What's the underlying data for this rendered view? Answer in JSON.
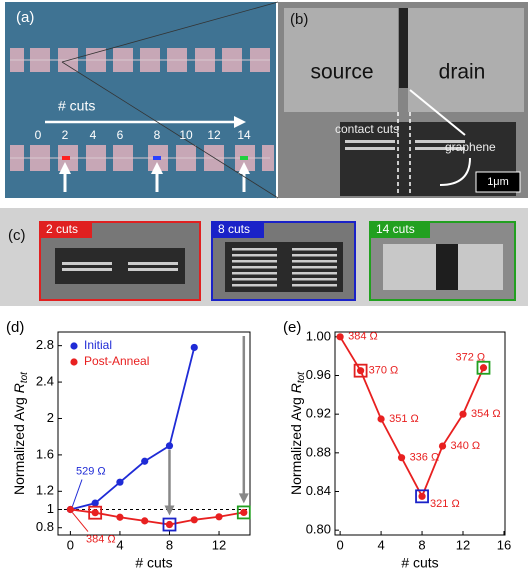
{
  "panels": {
    "a": {
      "label": "(a)",
      "axis_title": "# cuts",
      "numbers": [
        "0",
        "2",
        "4",
        "6",
        "8",
        "10",
        "12",
        "14"
      ]
    },
    "b": {
      "label": "(b)",
      "source": "source",
      "drain": "drain",
      "contact_cuts": "contact cuts",
      "graphene": "graphene",
      "scale": "1μm"
    },
    "c": {
      "label": "(c)",
      "tags": [
        "2 cuts",
        "8 cuts",
        "14 cuts"
      ]
    }
  },
  "chart_data": [
    {
      "type": "line",
      "panel_label": "(d)",
      "xlabel": "# cuts",
      "ylabel": "Normalized Avg",
      "ylabel_symbol": "R",
      "ylabel_subscript": "tot",
      "xlim": [
        -1,
        14.5
      ],
      "ylim": [
        0.72,
        2.95
      ],
      "xticks": [
        0,
        4,
        8,
        12
      ],
      "yticks": [
        0.8,
        1.0,
        1.2,
        1.6,
        2.0,
        2.4,
        2.8
      ],
      "reference_line": 1.0,
      "legend": true,
      "series": [
        {
          "name": "Initial",
          "color": "#1f2bd6",
          "x": [
            0,
            2,
            4,
            6,
            8,
            10
          ],
          "values": [
            1.0,
            1.07,
            1.3,
            1.53,
            1.7,
            2.78
          ]
        },
        {
          "name": "Post-Anneal",
          "color": "#e82020",
          "x": [
            0,
            2,
            4,
            6,
            8,
            10,
            12,
            14
          ],
          "values": [
            1.0,
            0.965,
            0.915,
            0.875,
            0.835,
            0.887,
            0.92,
            0.968
          ]
        }
      ],
      "highlights": [
        {
          "x": 2,
          "color": "#e02020"
        },
        {
          "x": 8,
          "color": "#1a22c8"
        },
        {
          "x": 14,
          "color": "#22a020"
        }
      ],
      "annotations": [
        "529 Ω",
        "384 Ω"
      ]
    },
    {
      "type": "line",
      "panel_label": "(e)",
      "xlabel": "# cuts",
      "ylabel": "Normalized Avg",
      "ylabel_symbol": "R",
      "ylabel_subscript": "tot",
      "xlim": [
        -0.5,
        16.1
      ],
      "ylim": [
        0.795,
        1.005
      ],
      "xticks": [
        0,
        4,
        8,
        12,
        16
      ],
      "yticks": [
        {
          "value": 0.8,
          "label": "0.80"
        },
        {
          "value": 0.84,
          "label": "0.84"
        },
        {
          "value": 0.88,
          "label": "0.88"
        },
        {
          "value": 0.92,
          "label": "0.92"
        },
        {
          "value": 0.96,
          "label": "0.96"
        },
        {
          "value": 1.0,
          "label": "1.00"
        }
      ],
      "legend": false,
      "series": [
        {
          "color": "#e82020",
          "x": [
            0,
            2,
            4,
            6,
            8,
            10,
            12,
            14
          ],
          "values": [
            1.0,
            0.965,
            0.915,
            0.875,
            0.835,
            0.887,
            0.92,
            0.968
          ],
          "point_labels": [
            "384 Ω",
            "370 Ω",
            "351 Ω",
            "336 Ω",
            "321 Ω",
            "340 Ω",
            "354 Ω",
            "372 Ω"
          ]
        }
      ],
      "highlights": [
        {
          "x": 2,
          "color": "#e02020"
        },
        {
          "x": 8,
          "color": "#1a22c8"
        },
        {
          "x": 14,
          "color": "#22a020"
        }
      ]
    }
  ]
}
